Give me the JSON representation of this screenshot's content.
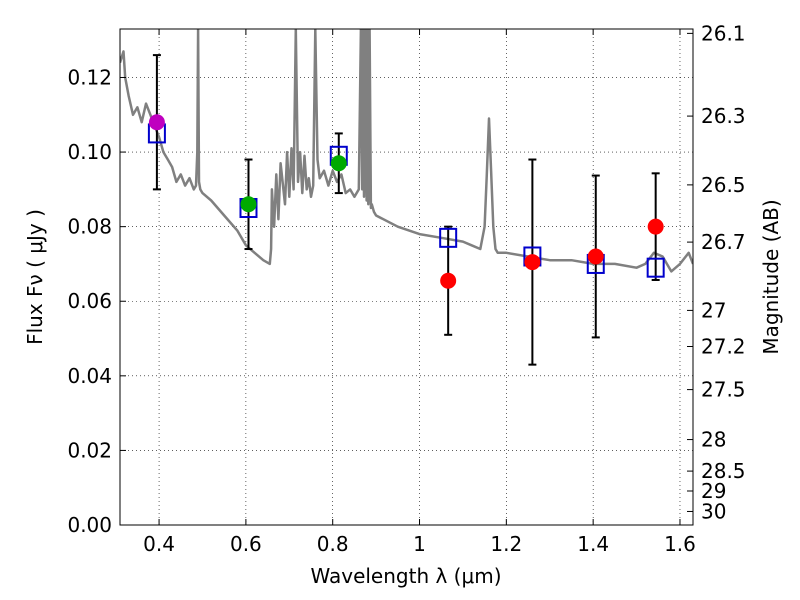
{
  "chart_data": {
    "type": "scatter",
    "xlabel": "Wavelength  λ (μm)",
    "ylabel": "Flux  Fν  ( μJy )",
    "y2label": "Magnitude (AB)",
    "xlim": [
      0.31,
      1.63
    ],
    "ylim": [
      0.0,
      0.133
    ],
    "grid": true,
    "x_ticks": [
      {
        "value": 0.4,
        "label": "0.4"
      },
      {
        "value": 0.6,
        "label": "0.6"
      },
      {
        "value": 0.8,
        "label": "0.8"
      },
      {
        "value": 1.0,
        "label": "1"
      },
      {
        "value": 1.2,
        "label": "1.2"
      },
      {
        "value": 1.4,
        "label": "1.4"
      },
      {
        "value": 1.6,
        "label": "1.6"
      }
    ],
    "y_ticks": [
      {
        "value": 0.0,
        "label": "0.00"
      },
      {
        "value": 0.02,
        "label": "0.02"
      },
      {
        "value": 0.04,
        "label": "0.04"
      },
      {
        "value": 0.06,
        "label": "0.06"
      },
      {
        "value": 0.08,
        "label": "0.08"
      },
      {
        "value": 0.1,
        "label": "0.10"
      },
      {
        "value": 0.12,
        "label": "0.12"
      }
    ],
    "mag_ticks": [
      {
        "value": 26.1,
        "label": "26.1"
      },
      {
        "value": 26.3,
        "label": "26.3"
      },
      {
        "value": 26.5,
        "label": "26.5"
      },
      {
        "value": 26.7,
        "label": "26.7"
      },
      {
        "value": 27.0,
        "label": "27"
      },
      {
        "value": 27.2,
        "label": "27.2"
      },
      {
        "value": 27.5,
        "label": "27.5"
      },
      {
        "value": 28.0,
        "label": "28"
      },
      {
        "value": 28.5,
        "label": "28.5"
      },
      {
        "value": 29.0,
        "label": "29"
      },
      {
        "value": 30.0,
        "label": "30"
      }
    ],
    "observed": [
      {
        "x": 0.395,
        "y": 0.108,
        "err": 0.018,
        "color": "#bf00bf"
      },
      {
        "x": 0.606,
        "y": 0.086,
        "err": 0.012,
        "color": "#00aa00"
      },
      {
        "x": 0.814,
        "y": 0.097,
        "err": 0.008,
        "color": "#00aa00"
      },
      {
        "x": 1.066,
        "y": 0.0655,
        "err": 0.0145,
        "color": "#ff0000"
      },
      {
        "x": 1.26,
        "y": 0.0705,
        "err": 0.0275,
        "color": "#ff0000"
      },
      {
        "x": 1.406,
        "y": 0.072,
        "err": 0.0217,
        "color": "#ff0000"
      },
      {
        "x": 1.544,
        "y": 0.08,
        "err": 0.0143,
        "color": "#ff0000"
      }
    ],
    "model_points": [
      {
        "x": 0.395,
        "y": 0.105
      },
      {
        "x": 0.606,
        "y": 0.085
      },
      {
        "x": 0.814,
        "y": 0.099
      },
      {
        "x": 1.066,
        "y": 0.077
      },
      {
        "x": 1.26,
        "y": 0.072
      },
      {
        "x": 1.406,
        "y": 0.07
      },
      {
        "x": 1.544,
        "y": 0.069
      }
    ],
    "sed_x": [
      0.31,
      0.318,
      0.322,
      0.33,
      0.34,
      0.35,
      0.36,
      0.37,
      0.38,
      0.39,
      0.4,
      0.41,
      0.42,
      0.43,
      0.44,
      0.45,
      0.46,
      0.47,
      0.48,
      0.485,
      0.488,
      0.49,
      0.492,
      0.495,
      0.5,
      0.52,
      0.55,
      0.58,
      0.6,
      0.62,
      0.64,
      0.655,
      0.658,
      0.66,
      0.665,
      0.67,
      0.675,
      0.68,
      0.69,
      0.695,
      0.7,
      0.705,
      0.71,
      0.715,
      0.72,
      0.725,
      0.73,
      0.735,
      0.74,
      0.745,
      0.75,
      0.755,
      0.76,
      0.765,
      0.77,
      0.78,
      0.79,
      0.8,
      0.81,
      0.82,
      0.83,
      0.84,
      0.85,
      0.86,
      0.865,
      0.868,
      0.87,
      0.872,
      0.875,
      0.878,
      0.88,
      0.882,
      0.885,
      0.888,
      0.89,
      0.895,
      0.9,
      0.95,
      1.0,
      1.05,
      1.1,
      1.12,
      1.14,
      1.15,
      1.155,
      1.16,
      1.165,
      1.17,
      1.175,
      1.18,
      1.2,
      1.25,
      1.3,
      1.35,
      1.4,
      1.45,
      1.5,
      1.52,
      1.54,
      1.56,
      1.58,
      1.6,
      1.62,
      1.63
    ],
    "sed_y": [
      0.124,
      0.127,
      0.12,
      0.115,
      0.11,
      0.112,
      0.108,
      0.113,
      0.11,
      0.107,
      0.104,
      0.1,
      0.098,
      0.096,
      0.092,
      0.094,
      0.091,
      0.093,
      0.09,
      0.091,
      0.1,
      0.133,
      0.092,
      0.09,
      0.089,
      0.087,
      0.083,
      0.079,
      0.075,
      0.073,
      0.071,
      0.07,
      0.074,
      0.09,
      0.08,
      0.094,
      0.082,
      0.097,
      0.086,
      0.1,
      0.088,
      0.101,
      0.09,
      0.133,
      0.092,
      0.1,
      0.089,
      0.099,
      0.09,
      0.093,
      0.088,
      0.091,
      0.133,
      0.098,
      0.093,
      0.095,
      0.091,
      0.095,
      0.092,
      0.094,
      0.089,
      0.09,
      0.088,
      0.09,
      0.133,
      0.09,
      0.133,
      0.088,
      0.133,
      0.087,
      0.133,
      0.086,
      0.133,
      0.085,
      0.086,
      0.084,
      0.083,
      0.08,
      0.078,
      0.077,
      0.076,
      0.075,
      0.074,
      0.08,
      0.094,
      0.109,
      0.095,
      0.08,
      0.074,
      0.073,
      0.073,
      0.072,
      0.071,
      0.071,
      0.07,
      0.07,
      0.069,
      0.07,
      0.073,
      0.072,
      0.068,
      0.07,
      0.073,
      0.07
    ],
    "colors": {
      "sed_line": "#808080",
      "model_marker": "#0000cc",
      "error_bar": "#000000",
      "grid": "#000000"
    }
  }
}
